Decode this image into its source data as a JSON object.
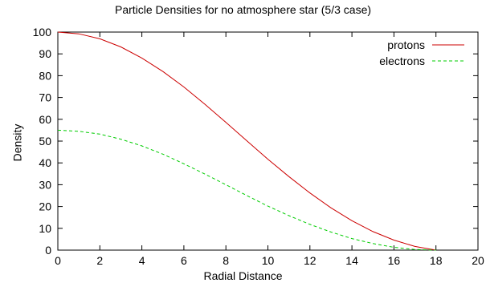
{
  "top_clipped_text": "",
  "chart_data": {
    "type": "line",
    "title": "Particle Densities for no atmosphere star (5/3 case)",
    "xlabel": "Radial Distance",
    "ylabel": "Density",
    "xlim": [
      0,
      20
    ],
    "ylim": [
      0,
      100
    ],
    "xticks": [
      0,
      2,
      4,
      6,
      8,
      10,
      12,
      14,
      16,
      18,
      20
    ],
    "yticks": [
      0,
      10,
      20,
      30,
      40,
      50,
      60,
      70,
      80,
      90,
      100
    ],
    "legend_position": "top-right",
    "series": [
      {
        "name": "protons",
        "color": "#cc0000",
        "style": "solid",
        "x": [
          0,
          1,
          2,
          3,
          4,
          5,
          6,
          7,
          8,
          9,
          10,
          11,
          12,
          13,
          14,
          15,
          16,
          17,
          18
        ],
        "y": [
          100,
          99.2,
          96.9,
          93.2,
          88.1,
          81.9,
          74.8,
          66.9,
          58.6,
          50.1,
          41.7,
          33.7,
          26.2,
          19.4,
          13.5,
          8.5,
          4.6,
          1.7,
          0
        ]
      },
      {
        "name": "electrons",
        "color": "#00cc00",
        "style": "dashed",
        "x": [
          0,
          1,
          2,
          3,
          4,
          5,
          6,
          7,
          8,
          9,
          10,
          11,
          12,
          13,
          14,
          15,
          16,
          17,
          18
        ],
        "y": [
          55,
          54.5,
          53.2,
          50.9,
          47.8,
          44.0,
          39.6,
          34.9,
          30.0,
          25.0,
          20.2,
          15.8,
          11.8,
          8.3,
          5.3,
          3.0,
          1.3,
          0.3,
          0
        ]
      }
    ]
  }
}
